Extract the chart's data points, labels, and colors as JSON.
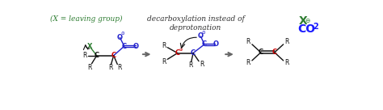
{
  "background_color": "#ffffff",
  "label_text": "(X = leaving group)",
  "label_color": "#2e7d32",
  "label_fontsize": 6.5,
  "caption_text": "decarboxylation instead of\ndeprotonation",
  "caption_color": "#333333",
  "caption_fontsize": 6.5,
  "top_right_X": "X",
  "top_right_Xcolor": "#2e7d32",
  "top_right_CO2": "CO2",
  "top_right_CO2color": "#1a1aff",
  "reaction_arrow_color": "#666666",
  "bond_color_black": "#111111",
  "bond_color_blue": "#2222cc",
  "C1_color": "#111111",
  "C2_color": "#cc0000",
  "Ccarboxyl_color": "#2222cc",
  "O_color": "#2222cc",
  "X_color": "#2e7d32",
  "R_color": "#111111",
  "curved_arrow_color": "#111111"
}
